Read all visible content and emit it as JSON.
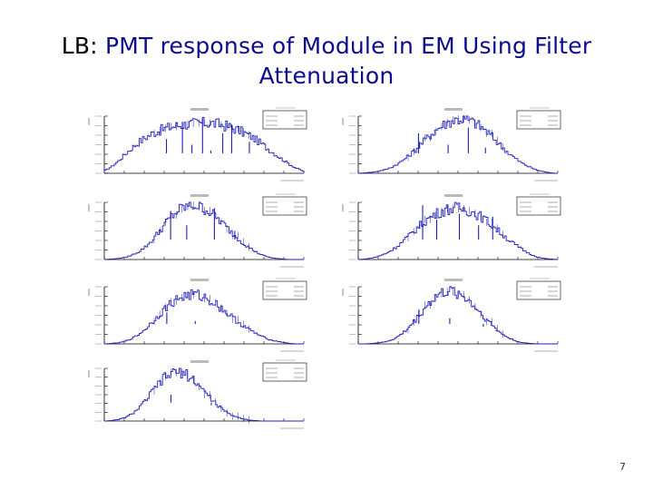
{
  "slide": {
    "title_prefix": "LB:",
    "title_main_line1": "PMT response of Module in EM Using Filter",
    "title_main_line2": "Attenuation",
    "page_number": "7"
  },
  "colors": {
    "title_blue": "#0b0b8c",
    "hist_line": "#1f1fbf",
    "axis": "#000000"
  },
  "chart_data": [
    {
      "type": "bar",
      "title": "",
      "ylim": [
        0,
        1
      ],
      "values": [
        0.05,
        0.12,
        0.22,
        0.34,
        0.45,
        0.55,
        0.63,
        0.7,
        0.75,
        0.79,
        0.82,
        0.84,
        0.86,
        0.87,
        0.88,
        0.88,
        0.87,
        0.85,
        0.82,
        0.78,
        0.73,
        0.67,
        0.6,
        0.51,
        0.42,
        0.33,
        0.24,
        0.16,
        0.09,
        0.04
      ],
      "spikes": [
        0.6,
        0.9,
        0.5,
        0.95,
        0.4,
        0.7,
        0.85,
        0.55
      ]
    },
    {
      "type": "bar",
      "title": "",
      "ylim": [
        0,
        1
      ],
      "values": [
        0.0,
        0.01,
        0.02,
        0.04,
        0.07,
        0.12,
        0.19,
        0.28,
        0.38,
        0.5,
        0.62,
        0.73,
        0.82,
        0.89,
        0.93,
        0.95,
        0.93,
        0.88,
        0.8,
        0.7,
        0.58,
        0.46,
        0.35,
        0.25,
        0.17,
        0.11,
        0.06,
        0.03,
        0.01,
        0.0
      ],
      "spikes": [
        0.7,
        0.5,
        0.8,
        0.45
      ]
    },
    {
      "type": "bar",
      "title": "",
      "ylim": [
        0,
        1
      ],
      "values": [
        0.0,
        0.01,
        0.02,
        0.04,
        0.08,
        0.14,
        0.23,
        0.35,
        0.5,
        0.65,
        0.78,
        0.88,
        0.93,
        0.95,
        0.92,
        0.86,
        0.77,
        0.66,
        0.54,
        0.42,
        0.31,
        0.22,
        0.14,
        0.08,
        0.04,
        0.02,
        0.01,
        0.0,
        0.0,
        0.0
      ],
      "spikes": [
        0.85,
        0.6,
        0.9,
        0.5
      ]
    },
    {
      "type": "bar",
      "title": "",
      "ylim": [
        0,
        1
      ],
      "values": [
        0.0,
        0.01,
        0.03,
        0.06,
        0.11,
        0.18,
        0.27,
        0.38,
        0.49,
        0.6,
        0.7,
        0.78,
        0.84,
        0.88,
        0.9,
        0.89,
        0.86,
        0.81,
        0.74,
        0.65,
        0.55,
        0.44,
        0.34,
        0.25,
        0.17,
        0.1,
        0.05,
        0.02,
        0.01,
        0.0
      ],
      "spikes": [
        0.95,
        0.7,
        0.8,
        0.6,
        0.75
      ]
    },
    {
      "type": "bar",
      "title": "",
      "ylim": [
        0,
        1
      ],
      "values": [
        0.0,
        0.01,
        0.02,
        0.05,
        0.1,
        0.17,
        0.27,
        0.39,
        0.52,
        0.64,
        0.74,
        0.81,
        0.85,
        0.86,
        0.84,
        0.79,
        0.72,
        0.63,
        0.53,
        0.43,
        0.34,
        0.26,
        0.19,
        0.13,
        0.08,
        0.05,
        0.03,
        0.01,
        0.0,
        0.0
      ],
      "spikes": [
        0.55,
        0.4,
        0.35
      ]
    },
    {
      "type": "bar",
      "title": "",
      "ylim": [
        0,
        1
      ],
      "values": [
        0.0,
        0.0,
        0.01,
        0.02,
        0.04,
        0.08,
        0.15,
        0.25,
        0.38,
        0.53,
        0.68,
        0.8,
        0.88,
        0.92,
        0.91,
        0.86,
        0.77,
        0.65,
        0.52,
        0.39,
        0.27,
        0.17,
        0.1,
        0.05,
        0.02,
        0.01,
        0.0,
        0.0,
        0.0,
        0.0
      ],
      "spikes": [
        0.6,
        0.45,
        0.3
      ]
    },
    {
      "type": "bar",
      "title": "",
      "ylim": [
        0,
        1
      ],
      "values": [
        0.0,
        0.01,
        0.03,
        0.07,
        0.14,
        0.25,
        0.4,
        0.57,
        0.73,
        0.85,
        0.92,
        0.93,
        0.88,
        0.78,
        0.65,
        0.5,
        0.36,
        0.24,
        0.15,
        0.09,
        0.05,
        0.02,
        0.01,
        0.0,
        0.0,
        0.0,
        0.0,
        0.0,
        0.0,
        0.0
      ],
      "spikes": [
        0.5,
        0.3
      ]
    }
  ]
}
